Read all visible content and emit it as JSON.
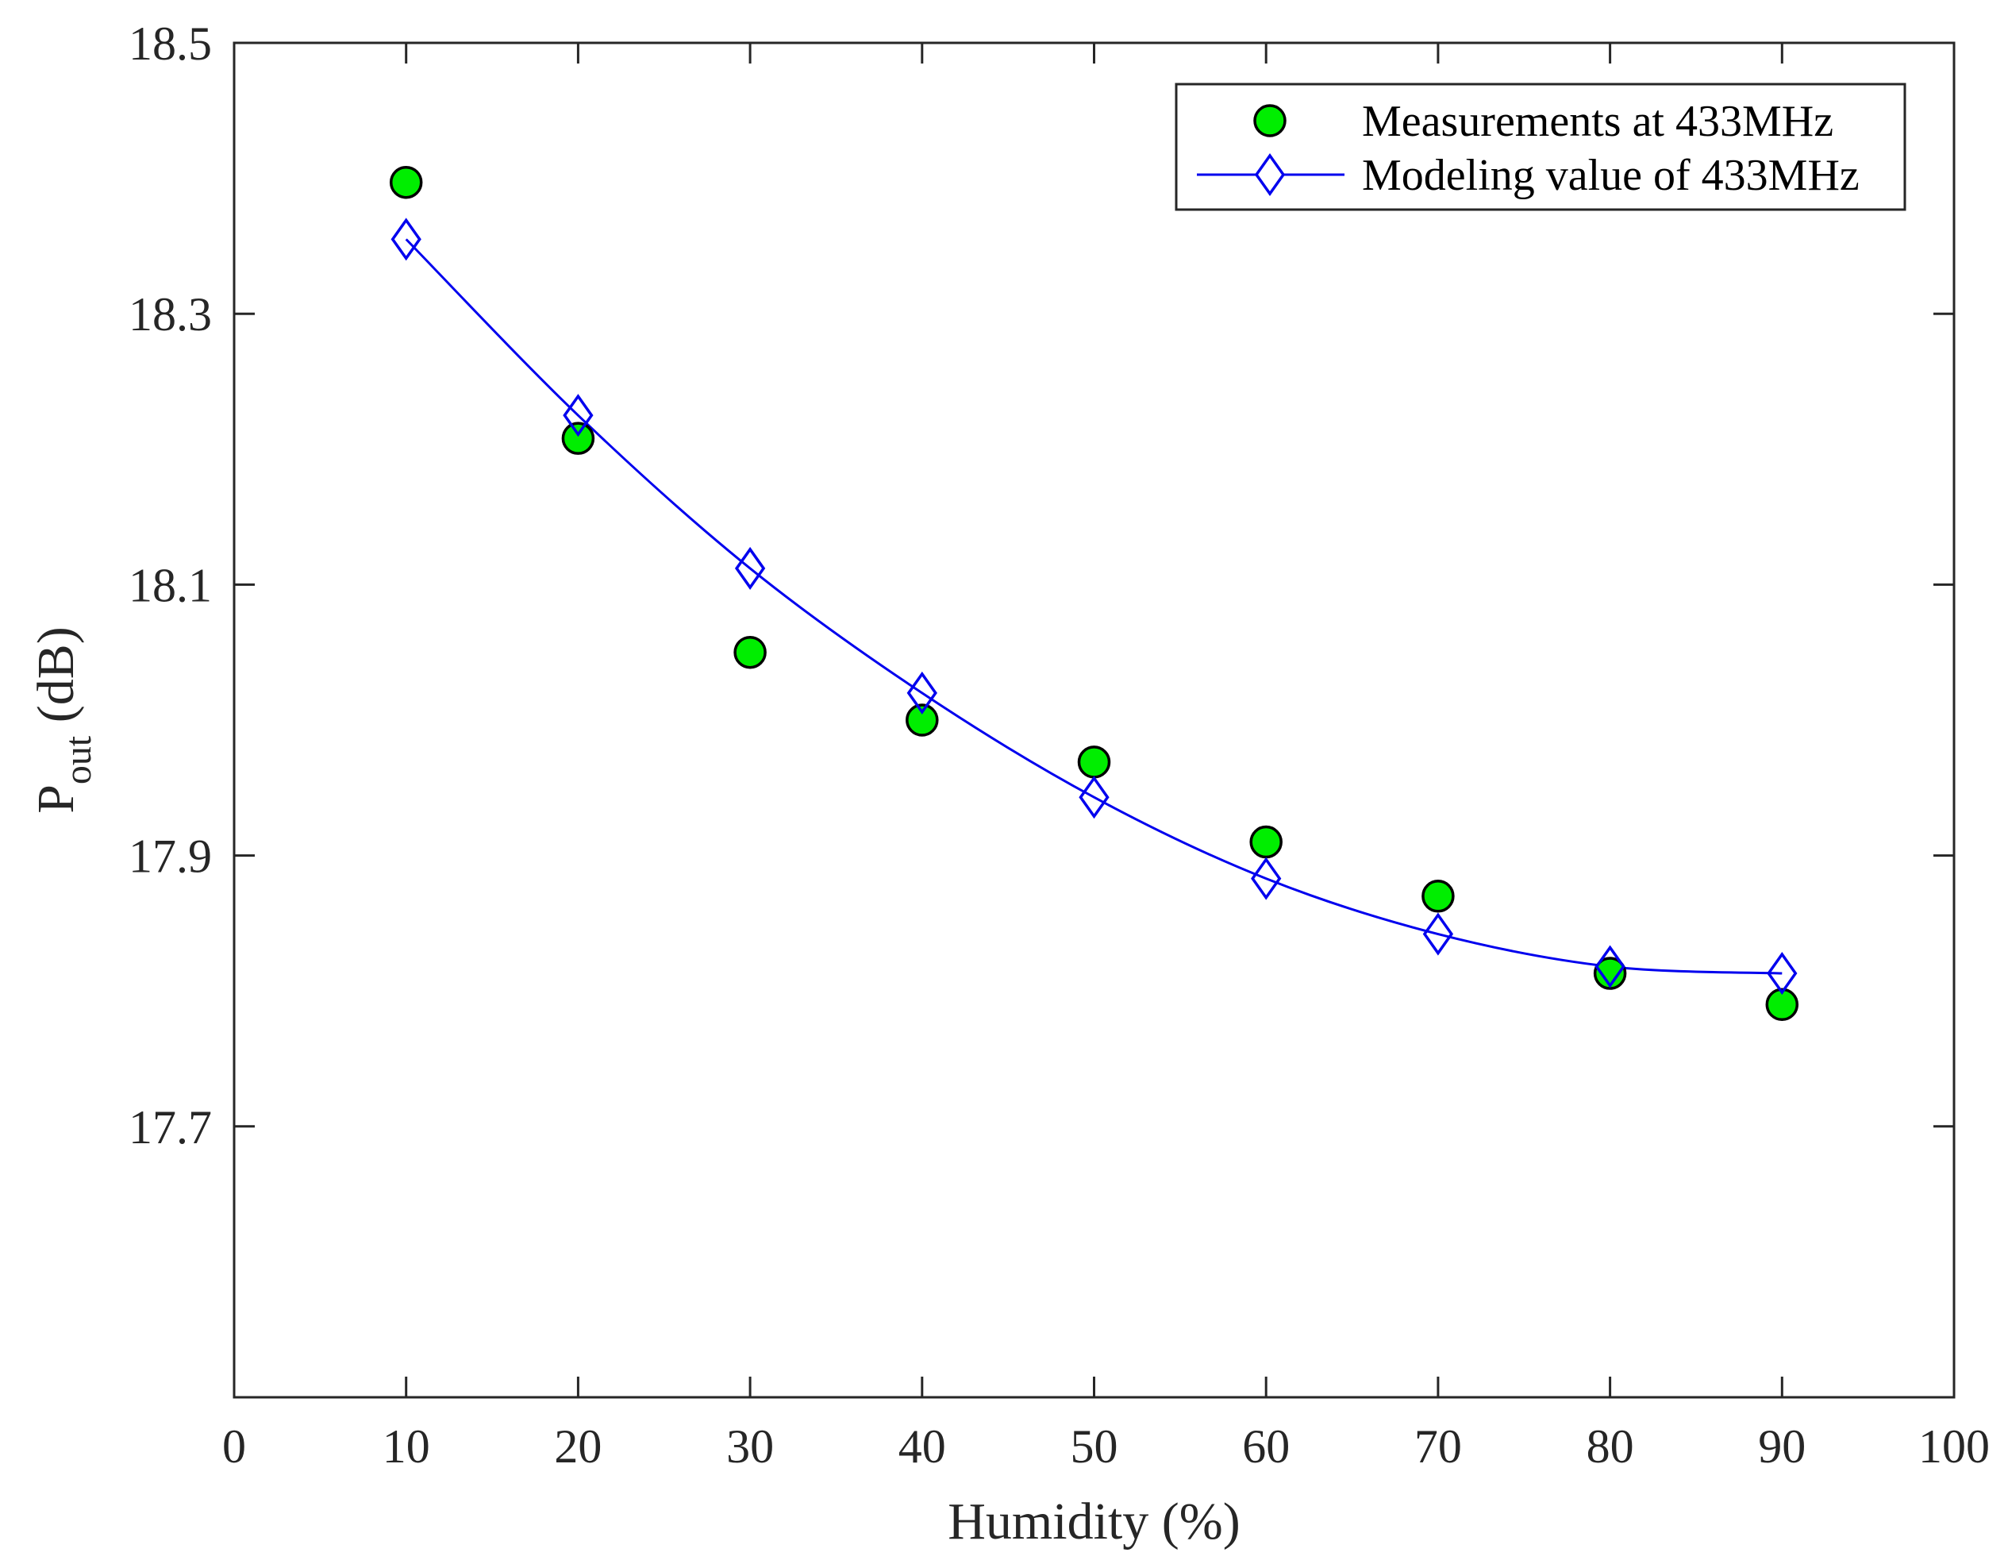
{
  "chart_data": {
    "type": "scatter",
    "title": "",
    "xlabel": "Humidity (%)",
    "ylabel": {
      "base": "P",
      "subscript": "out",
      "suffix": " (dB)"
    },
    "xlim": [
      0,
      100
    ],
    "ylim": [
      17.5,
      18.5
    ],
    "x_ticks": [
      0,
      10,
      20,
      30,
      40,
      50,
      60,
      70,
      80,
      90,
      100
    ],
    "x_tick_labels": [
      "0",
      "10",
      "20",
      "30",
      "40",
      "50",
      "60",
      "70",
      "80",
      "90",
      "100"
    ],
    "y_ticks": [
      17.7,
      17.9,
      18.1,
      18.3,
      18.5
    ],
    "y_tick_labels": [
      "17.7",
      "17.9",
      "18.1",
      "18.3",
      "18.5"
    ],
    "grid": false,
    "legend_position": "top-right",
    "series": [
      {
        "name": "Measurements at 433MHz",
        "kind": "scatter",
        "marker": "circle",
        "color": "#00ee00",
        "edge_color": "#000000",
        "x": [
          10,
          20,
          30,
          40,
          50,
          60,
          70,
          80,
          90
        ],
        "y": [
          18.397,
          18.208,
          18.05,
          18.0,
          17.969,
          17.91,
          17.87,
          17.813,
          17.79
        ]
      },
      {
        "name": "Modeling value of 433MHz",
        "kind": "line",
        "marker": "diamond",
        "color": "#0000ee",
        "x": [
          10,
          20,
          30,
          40,
          50,
          60,
          70,
          80,
          90
        ],
        "y": [
          18.355,
          18.225,
          18.112,
          18.02,
          17.943,
          17.883,
          17.842,
          17.818,
          17.813
        ]
      }
    ]
  }
}
